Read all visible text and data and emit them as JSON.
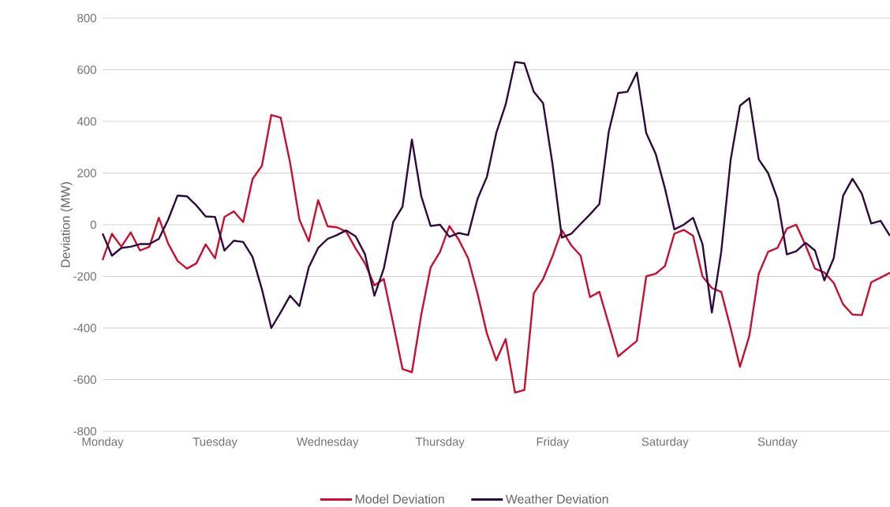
{
  "chart_data": {
    "type": "line",
    "ylabel": "Deviation (MW)",
    "categories": [
      "Monday",
      null,
      null,
      null,
      null,
      null,
      null,
      null,
      null,
      null,
      null,
      null,
      "Tuesday",
      null,
      null,
      null,
      null,
      null,
      null,
      null,
      null,
      null,
      null,
      null,
      "Wednesday",
      null,
      null,
      null,
      null,
      null,
      null,
      null,
      null,
      null,
      null,
      null,
      "Thursday",
      null,
      null,
      null,
      null,
      null,
      null,
      null,
      null,
      null,
      null,
      null,
      "Friday",
      null,
      null,
      null,
      null,
      null,
      null,
      null,
      null,
      null,
      null,
      null,
      "Saturday",
      null,
      null,
      null,
      null,
      null,
      null,
      null,
      null,
      null,
      null,
      null,
      "Sunday",
      null,
      null,
      null,
      null,
      null,
      null,
      null,
      null,
      null,
      null,
      null,
      null
    ],
    "ylim": [
      -800,
      800
    ],
    "yticks": [
      -800,
      -600,
      -400,
      -200,
      0,
      200,
      400,
      600,
      800
    ],
    "grid": "y",
    "legend": "bottom",
    "marker": "none",
    "line_style": "solid",
    "series": [
      {
        "name": "Model Deviation",
        "color": "#c8102e",
        "values": [
          -137,
          -35,
          -85,
          -30,
          -100,
          -85,
          27,
          -73,
          -140,
          -170,
          -150,
          -76,
          -130,
          30,
          52,
          10,
          177,
          228,
          425,
          415,
          241,
          20,
          -64,
          95,
          -6,
          -10,
          -27,
          -92,
          -150,
          -235,
          -210,
          -382,
          -559,
          -571,
          -348,
          -165,
          -105,
          -5,
          -58,
          -130,
          -266,
          -421,
          -525,
          -443,
          -650,
          -640,
          -266,
          -210,
          -122,
          -21,
          -80,
          -120,
          -280,
          -260,
          -385,
          -510,
          -480,
          -450,
          -200,
          -190,
          -160,
          -35,
          -20,
          -43,
          -200,
          -245,
          -260,
          -400,
          -550,
          -430,
          -190,
          -105,
          -90,
          -15,
          0,
          -80,
          -170,
          -185,
          -225,
          -308,
          -348,
          -350,
          -223,
          -205,
          -186
        ]
      },
      {
        "name": "Weather Deviation",
        "color": "#2d0a3d",
        "values": [
          -34,
          -120,
          -90,
          -85,
          -75,
          -75,
          -55,
          20,
          113,
          110,
          75,
          32,
          30,
          -100,
          -62,
          -67,
          -125,
          -250,
          -400,
          -339,
          -275,
          -315,
          -165,
          -90,
          -55,
          -40,
          -22,
          -45,
          -115,
          -275,
          -170,
          10,
          70,
          330,
          110,
          -5,
          0,
          -47,
          -32,
          -40,
          100,
          185,
          355,
          465,
          630,
          625,
          515,
          470,
          235,
          -50,
          -35,
          3,
          40,
          80,
          360,
          510,
          515,
          589,
          355,
          275,
          140,
          -18,
          0,
          27,
          -75,
          -340,
          -105,
          250,
          461,
          490,
          253,
          200,
          100,
          -115,
          -103,
          -70,
          -100,
          -215,
          -130,
          112,
          178,
          120,
          5,
          15,
          -43
        ]
      }
    ]
  }
}
